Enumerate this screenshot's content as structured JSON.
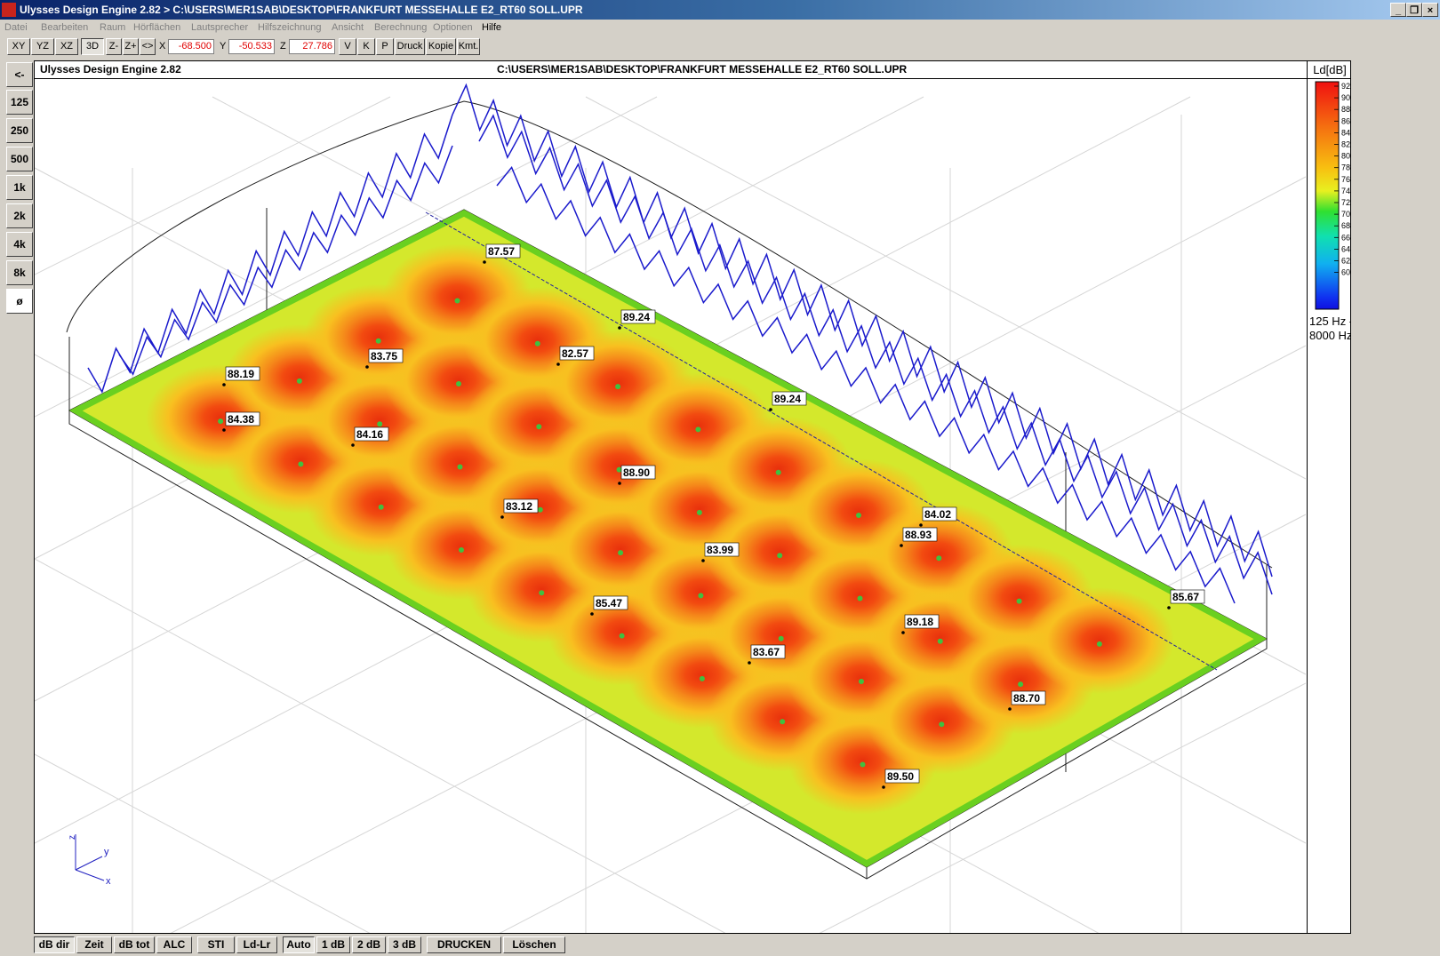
{
  "window": {
    "title": "Ulysses Design Engine 2.82 > C:\\USERS\\MER1SAB\\DESKTOP\\FRANKFURT MESSEHALLE E2_RT60 SOLL.UPR",
    "minimize": "_",
    "restore": "❐",
    "close": "×"
  },
  "menu": [
    "Datei",
    "Bearbeiten",
    "Raum",
    "Hörflächen",
    "Lautsprecher",
    "Hilfszeichnung",
    "Ansicht",
    "Berechnung",
    "Optionen",
    "Hilfe"
  ],
  "toolbar": {
    "view_buttons": [
      "XY",
      "YZ",
      "XZ",
      "3D",
      "Z-",
      "Z+",
      "<>"
    ],
    "x_label": "X",
    "x_value": "-68.500",
    "y_label": "Y",
    "y_value": "-50.533",
    "z_label": "Z",
    "z_value": "27.786",
    "action_buttons": [
      "V",
      "K",
      "P",
      "Druck",
      "Kopie",
      "Kmt."
    ]
  },
  "left_bands": [
    "<-",
    "125",
    "250",
    "500",
    "1k",
    "2k",
    "4k",
    "8k",
    "ø"
  ],
  "viewport": {
    "title": "Ulysses Design Engine 2.82",
    "path": "C:\\USERS\\MER1SAB\\DESKTOP\\FRANKFURT MESSEHALLE E2_RT60 SOLL.UPR"
  },
  "legend": {
    "title": "Ld[dB]",
    "ticks": [
      "92",
      "90",
      "88",
      "86",
      "84",
      "82",
      "80",
      "78",
      "76",
      "74",
      "72",
      "70",
      "68",
      "66",
      "64",
      "62",
      "60"
    ],
    "freq_line1": "125 Hz -",
    "freq_line2": "8000 Hz"
  },
  "axis_labels": {
    "z": "z",
    "y": "y",
    "x": "x"
  },
  "measurements": [
    "87.57",
    "89.24",
    "83.75",
    "82.57",
    "88.19",
    "84.38",
    "89.24",
    "84.16",
    "88.90",
    "83.12",
    "84.02",
    "88.93",
    "83.99",
    "85.67",
    "85.47",
    "89.18",
    "83.67",
    "88.70",
    "89.50"
  ],
  "bottom_buttons": [
    "dB dir",
    "Zeit",
    "dB tot",
    "ALC",
    "STI",
    "Ld-Lr",
    "Auto",
    "1 dB",
    "2 dB",
    "3 dB",
    "DRUCKEN",
    "Löschen"
  ],
  "colors": {
    "accent": "#0a246a",
    "truss": "#1a1acc",
    "hot": "#e83a10",
    "warm": "#f5a020",
    "cool": "#cde430",
    "edge": "#5fd020"
  }
}
